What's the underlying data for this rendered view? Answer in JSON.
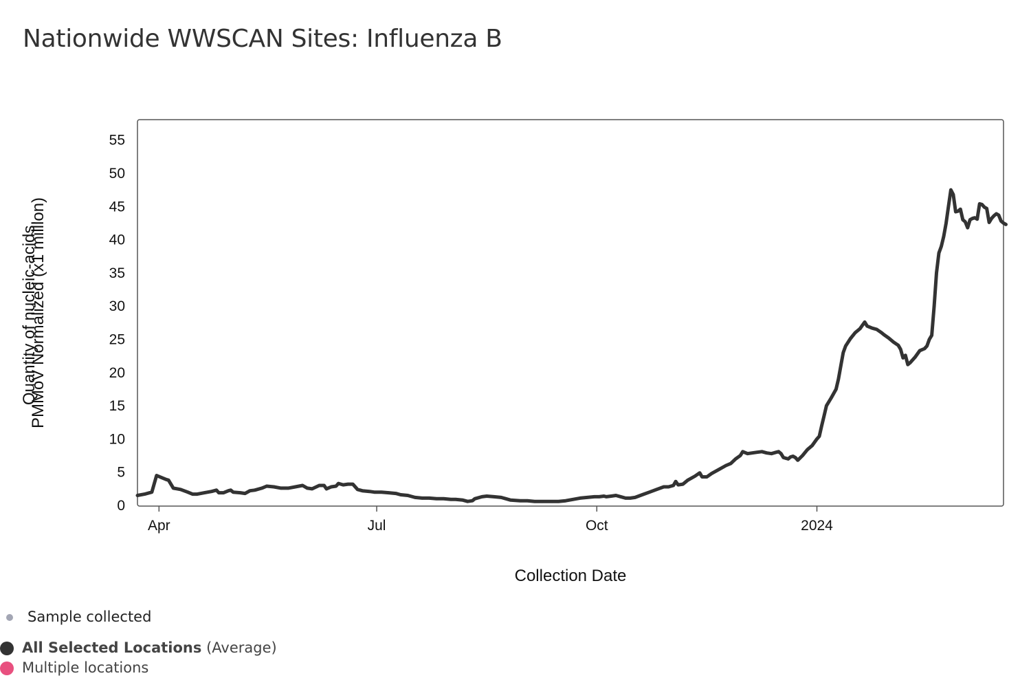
{
  "title": "Nationwide WWSCAN Sites: Influenza B",
  "chart_data": {
    "type": "line",
    "title": "Nationwide WWSCAN Sites: Influenza B",
    "xlabel": "Collection Date",
    "ylabel_line1": "Quantity of nucleic-acids,",
    "ylabel_line2": "PMMoV Normalized (x1 million)",
    "ylim": [
      0,
      58
    ],
    "yticks": [
      0,
      5,
      10,
      15,
      20,
      25,
      30,
      35,
      40,
      45,
      50,
      55
    ],
    "xlim": [
      -3,
      359
    ],
    "xticks": [
      {
        "label": "Apr",
        "day": 6
      },
      {
        "label": "Jul",
        "day": 97
      },
      {
        "label": "Oct",
        "day": 189
      },
      {
        "label": "2024",
        "day": 281
      }
    ],
    "x_unit": "days since 2023-03-26",
    "series": [
      {
        "name": "All Selected Locations (Average)",
        "color": "#333333",
        "points": [
          [
            -3,
            1.5
          ],
          [
            0,
            1.7
          ],
          [
            3,
            2.0
          ],
          [
            5,
            4.5
          ],
          [
            7,
            4.2
          ],
          [
            9,
            3.9
          ],
          [
            10,
            3.8
          ],
          [
            12,
            2.6
          ],
          [
            15,
            2.4
          ],
          [
            18,
            2.0
          ],
          [
            20,
            1.7
          ],
          [
            22,
            1.7
          ],
          [
            25,
            1.9
          ],
          [
            28,
            2.1
          ],
          [
            30,
            2.3
          ],
          [
            31,
            1.9
          ],
          [
            33,
            1.9
          ],
          [
            35,
            2.2
          ],
          [
            36,
            2.3
          ],
          [
            37,
            2.0
          ],
          [
            40,
            1.9
          ],
          [
            42,
            1.8
          ],
          [
            44,
            2.2
          ],
          [
            46,
            2.3
          ],
          [
            49,
            2.6
          ],
          [
            51,
            2.9
          ],
          [
            54,
            2.8
          ],
          [
            57,
            2.6
          ],
          [
            60,
            2.6
          ],
          [
            63,
            2.8
          ],
          [
            66,
            3.0
          ],
          [
            68,
            2.6
          ],
          [
            70,
            2.5
          ],
          [
            73,
            3.0
          ],
          [
            75,
            3.0
          ],
          [
            76,
            2.5
          ],
          [
            78,
            2.8
          ],
          [
            80,
            2.9
          ],
          [
            81,
            3.3
          ],
          [
            83,
            3.1
          ],
          [
            85,
            3.2
          ],
          [
            87,
            3.2
          ],
          [
            89,
            2.4
          ],
          [
            91,
            2.2
          ],
          [
            94,
            2.1
          ],
          [
            96,
            2.0
          ],
          [
            99,
            2.0
          ],
          [
            102,
            1.9
          ],
          [
            105,
            1.8
          ],
          [
            107,
            1.6
          ],
          [
            110,
            1.5
          ],
          [
            113,
            1.2
          ],
          [
            116,
            1.1
          ],
          [
            119,
            1.1
          ],
          [
            122,
            1.0
          ],
          [
            125,
            1.0
          ],
          [
            128,
            0.9
          ],
          [
            130,
            0.9
          ],
          [
            133,
            0.8
          ],
          [
            135,
            0.6
          ],
          [
            137,
            0.7
          ],
          [
            138,
            1.0
          ],
          [
            141,
            1.3
          ],
          [
            143,
            1.4
          ],
          [
            146,
            1.3
          ],
          [
            149,
            1.2
          ],
          [
            151,
            1.0
          ],
          [
            153,
            0.8
          ],
          [
            157,
            0.7
          ],
          [
            160,
            0.7
          ],
          [
            163,
            0.6
          ],
          [
            166,
            0.6
          ],
          [
            170,
            0.6
          ],
          [
            173,
            0.6
          ],
          [
            176,
            0.7
          ],
          [
            179,
            0.9
          ],
          [
            182,
            1.1
          ],
          [
            185,
            1.2
          ],
          [
            188,
            1.3
          ],
          [
            190,
            1.3
          ],
          [
            192,
            1.4
          ],
          [
            193,
            1.3
          ],
          [
            195,
            1.4
          ],
          [
            197,
            1.5
          ],
          [
            199,
            1.3
          ],
          [
            201,
            1.1
          ],
          [
            203,
            1.1
          ],
          [
            205,
            1.2
          ],
          [
            208,
            1.6
          ],
          [
            211,
            2.0
          ],
          [
            214,
            2.4
          ],
          [
            217,
            2.8
          ],
          [
            219,
            2.8
          ],
          [
            221,
            3.0
          ],
          [
            222,
            3.6
          ],
          [
            223,
            3.1
          ],
          [
            225,
            3.2
          ],
          [
            227,
            3.8
          ],
          [
            230,
            4.4
          ],
          [
            232,
            4.9
          ],
          [
            233,
            4.3
          ],
          [
            235,
            4.3
          ],
          [
            237,
            4.8
          ],
          [
            240,
            5.4
          ],
          [
            243,
            6.0
          ],
          [
            245,
            6.3
          ],
          [
            247,
            7.0
          ],
          [
            249,
            7.5
          ],
          [
            250,
            8.1
          ],
          [
            252,
            7.8
          ],
          [
            254,
            7.9
          ],
          [
            256,
            8.0
          ],
          [
            258,
            8.1
          ],
          [
            260,
            7.9
          ],
          [
            262,
            7.8
          ],
          [
            264,
            8.0
          ],
          [
            265,
            8.1
          ],
          [
            266,
            7.8
          ],
          [
            267,
            7.2
          ],
          [
            269,
            7.0
          ],
          [
            270,
            7.3
          ],
          [
            271,
            7.4
          ],
          [
            272,
            7.2
          ],
          [
            273,
            6.8
          ],
          [
            275,
            7.5
          ],
          [
            277,
            8.4
          ],
          [
            279,
            9.0
          ],
          [
            281,
            10.0
          ],
          [
            282,
            10.4
          ],
          [
            283,
            12.0
          ],
          [
            284,
            13.5
          ],
          [
            285,
            15.0
          ],
          [
            287,
            16.2
          ],
          [
            289,
            17.5
          ],
          [
            290,
            19.0
          ],
          [
            291,
            21.0
          ],
          [
            292,
            23.0
          ],
          [
            293,
            24.0
          ],
          [
            295,
            25.1
          ],
          [
            297,
            26.0
          ],
          [
            299,
            26.6
          ],
          [
            300,
            27.1
          ],
          [
            301,
            27.6
          ],
          [
            302,
            27.0
          ],
          [
            304,
            26.7
          ],
          [
            306,
            26.5
          ],
          [
            308,
            26.0
          ],
          [
            309,
            25.7
          ],
          [
            311,
            25.2
          ],
          [
            313,
            24.6
          ],
          [
            315,
            24.1
          ],
          [
            316,
            23.5
          ],
          [
            317,
            22.2
          ],
          [
            318,
            22.6
          ],
          [
            319,
            21.2
          ],
          [
            320,
            21.5
          ],
          [
            322,
            22.3
          ],
          [
            324,
            23.3
          ],
          [
            326,
            23.6
          ],
          [
            327,
            24.0
          ],
          [
            328,
            25.0
          ],
          [
            329,
            25.6
          ],
          [
            330,
            30.0
          ],
          [
            331,
            35.0
          ],
          [
            332,
            38.0
          ],
          [
            333,
            39.0
          ],
          [
            334,
            40.5
          ],
          [
            335,
            42.5
          ],
          [
            336,
            45.0
          ],
          [
            337,
            47.5
          ],
          [
            338,
            46.8
          ],
          [
            339,
            44.2
          ],
          [
            340,
            44.3
          ],
          [
            341,
            44.6
          ],
          [
            342,
            43.0
          ],
          [
            343,
            42.7
          ],
          [
            344,
            41.8
          ],
          [
            345,
            43.0
          ],
          [
            346,
            43.2
          ],
          [
            347,
            43.3
          ],
          [
            348,
            43.1
          ],
          [
            349,
            45.4
          ],
          [
            350,
            45.3
          ],
          [
            351,
            44.9
          ],
          [
            352,
            44.7
          ],
          [
            353,
            42.6
          ],
          [
            354,
            43.2
          ],
          [
            355,
            43.6
          ],
          [
            356,
            43.9
          ],
          [
            357,
            43.7
          ],
          [
            358,
            42.8
          ],
          [
            359,
            42.5
          ],
          [
            360,
            42.3
          ]
        ]
      }
    ]
  },
  "legend": {
    "sample": {
      "label": "Sample collected",
      "color": "#a3a6b4"
    },
    "average": {
      "label_bold": "All Selected Locations",
      "label_suffix": " (Average)",
      "color": "#333333"
    },
    "multiple": {
      "label": "Multiple locations",
      "color": "#e8507f"
    }
  }
}
